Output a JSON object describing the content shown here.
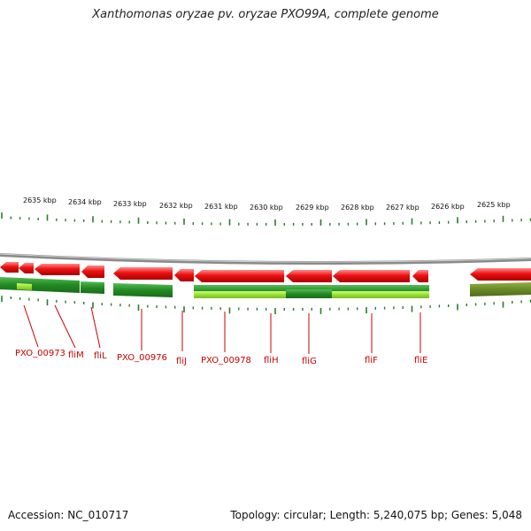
{
  "title": "Xanthomonas oryzae pv. oryzae PXO99A, complete genome",
  "footer": {
    "accession": "Accession: NC_010717",
    "summary": "Topology: circular; Length: 5,240,075 bp; Genes: 5,048"
  },
  "colors": {
    "forward_gene": "#ee1111",
    "reverse_cds": "#2e9a2e",
    "reverse_highlight": "#aaee44",
    "olive": "#6f8f2a",
    "tick": "#2e7a2e",
    "label": "#cc0000",
    "backbone": "#888888"
  },
  "scale": {
    "labels": [
      "2635 kbp",
      "2634 kbp",
      "2633 kbp",
      "2632 kbp",
      "2631 kbp",
      "2630 kbp",
      "2629 kbp",
      "2628 kbp",
      "2627 kbp",
      "2626 kbp",
      "2625 kbp"
    ]
  },
  "gene_labels": [
    "PXO_00973",
    "fliM",
    "fliL",
    "PXO_00976",
    "fliJ",
    "PXO_00978",
    "fliH",
    "fliG",
    "fliF",
    "fliE"
  ]
}
